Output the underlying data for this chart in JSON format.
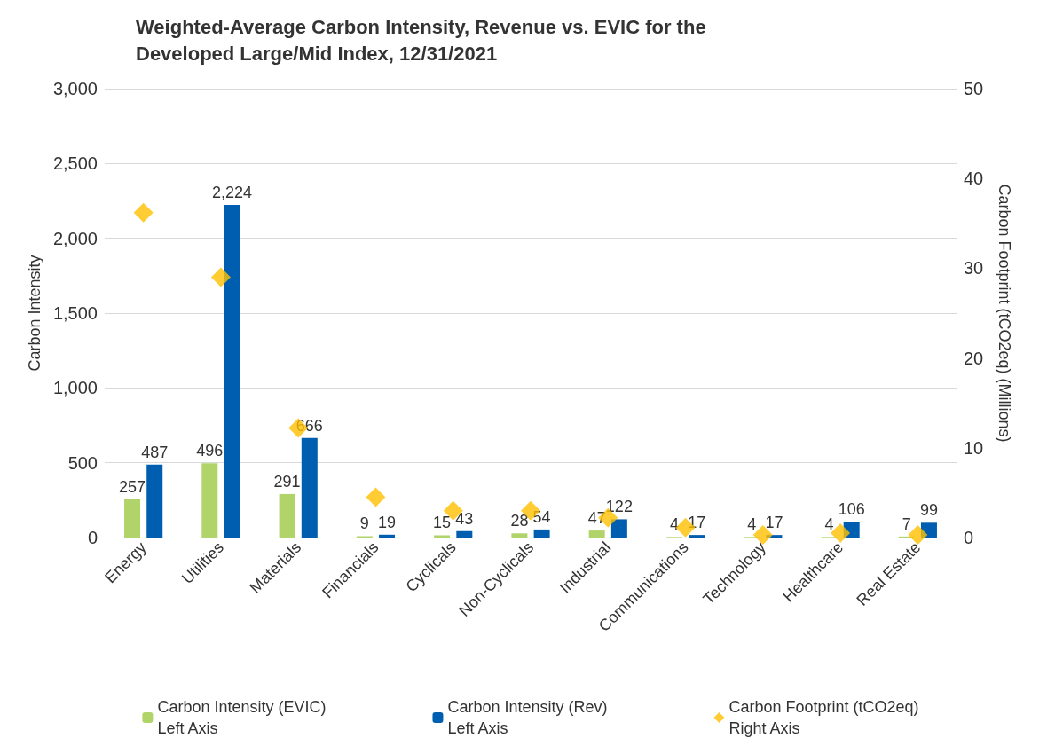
{
  "chart_data": {
    "type": "bar",
    "title": "Weighted-Average Carbon Intensity, Revenue vs. EVIC for the Developed Large/Mid Index, 12/31/2021",
    "ylabel": "Carbon Intensity",
    "y2label": "Carbon Footprint (tCO2eq) (Millions)",
    "categories": [
      "Energy",
      "Utilities",
      "Materials",
      "Financials",
      "Cyclicals",
      "Non-Cyclicals",
      "Industrial",
      "Communications",
      "Technology",
      "Healthcare",
      "Real Estate"
    ],
    "series": [
      {
        "name": "Carbon Intensity (EVIC)\nLeft Axis",
        "color": "#b0d46a",
        "values": [
          257,
          496,
          291,
          9,
          15,
          28,
          47,
          4,
          4,
          4,
          7
        ],
        "value_labels": [
          "257",
          "496",
          "291",
          "9",
          "15",
          "28",
          "47",
          "4",
          "4",
          "4",
          "7"
        ]
      },
      {
        "name": "Carbon Intensity (Rev)\nLeft Axis",
        "color": "#005eb0",
        "values": [
          487,
          2224,
          666,
          19,
          43,
          54,
          122,
          17,
          17,
          106,
          99
        ],
        "value_labels": [
          "487",
          "2,224",
          "666",
          "19",
          "43",
          "54",
          "122",
          "17",
          "17",
          "106",
          "99"
        ]
      },
      {
        "name": "Carbon Footprint (tCO2eq)\nRight Axis",
        "type": "scatter",
        "axis": "y2",
        "marker": "diamond",
        "color": "#ffc000",
        "x": [
          "Energy",
          "Utilities",
          "Materials",
          "Financials",
          "Cyclicals",
          "Non-Cyclicals",
          "Industrial",
          "Communications",
          "Technology",
          "Healthcare",
          "Real Estate"
        ],
        "values": [
          36.2,
          29,
          12.2,
          4.5,
          3,
          3,
          2.2,
          1.1,
          0.3,
          0.5,
          0.3
        ]
      }
    ],
    "ylim": [
      0,
      3000
    ],
    "yticks": [
      0,
      {
        "value": 500,
        "label": "500"
      },
      {
        "value": 1000,
        "label": "1,000"
      },
      {
        "value": 1500,
        "label": "1,500"
      },
      {
        "value": 2000,
        "label": "2,000"
      },
      {
        "value": 2500,
        "label": "2,500"
      },
      {
        "value": 3000,
        "label": "3,000"
      }
    ],
    "y2lim": [
      0,
      50
    ],
    "y2ticks": [
      0,
      10,
      20,
      30,
      40,
      50
    ],
    "grid": "y",
    "legend": "bottom"
  }
}
